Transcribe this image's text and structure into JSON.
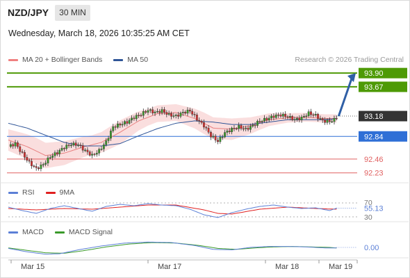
{
  "header": {
    "pair": "NZD/JPY",
    "timeframe": "30 MIN",
    "datetime": "Wednesday, March 18, 2026 10:35:25 AM CET",
    "credit": "Research © 2026 Trading Central"
  },
  "legend": {
    "main": [
      {
        "label": "MA 20 + Bollinger Bands",
        "color": "#f08080"
      },
      {
        "label": "MA 50",
        "color": "#2f5597"
      }
    ],
    "rsi": [
      {
        "label": "RSI",
        "color": "#5b7fd6"
      },
      {
        "label": "9MA",
        "color": "#e02020"
      }
    ],
    "macd": [
      {
        "label": "MACD",
        "color": "#5b7fd6"
      },
      {
        "label": "MACD Signal",
        "color": "#3a9a2a"
      }
    ]
  },
  "colors": {
    "up": "#4caf2a",
    "resistance": "#4e9a06",
    "pivot": "#2f6fd6",
    "support": "#e06060",
    "current": "#333333",
    "arrow": "#2f5fa6",
    "bull_candle": "#3a9a2a",
    "bear_candle": "#d43030"
  },
  "chart_data": {
    "type": "candlestick",
    "x_ticks": [
      "Mar 15",
      "Mar 17",
      "Mar 18",
      "Mar 19"
    ],
    "y_range": [
      92.18,
      93.96
    ],
    "levels": [
      {
        "value": 93.9,
        "label": "93.90",
        "kind": "resistance"
      },
      {
        "value": 93.67,
        "label": "93.67",
        "kind": "resistance"
      },
      {
        "value": 93.18,
        "label": "93.18",
        "kind": "current"
      },
      {
        "value": 92.84,
        "label": "92.84",
        "kind": "pivot"
      },
      {
        "value": 92.46,
        "label": "92.46",
        "kind": "support"
      },
      {
        "value": 92.23,
        "label": "92.23",
        "kind": "support"
      }
    ],
    "price_path": [
      [
        0,
        92.67
      ],
      [
        3,
        92.72
      ],
      [
        6,
        92.55
      ],
      [
        9,
        92.4
      ],
      [
        12,
        92.3
      ],
      [
        15,
        92.37
      ],
      [
        18,
        92.5
      ],
      [
        21,
        92.57
      ],
      [
        24,
        92.66
      ],
      [
        27,
        92.71
      ],
      [
        30,
        92.7
      ],
      [
        33,
        92.6
      ],
      [
        36,
        92.52
      ],
      [
        39,
        92.6
      ],
      [
        42,
        92.75
      ],
      [
        45,
        93.0
      ],
      [
        48,
        93.04
      ],
      [
        51,
        93.08
      ],
      [
        54,
        93.16
      ],
      [
        57,
        93.21
      ],
      [
        60,
        93.28
      ],
      [
        63,
        93.24
      ],
      [
        66,
        93.27
      ],
      [
        69,
        93.2
      ],
      [
        72,
        93.18
      ],
      [
        75,
        93.24
      ],
      [
        78,
        93.27
      ],
      [
        81,
        93.13
      ],
      [
        84,
        93.02
      ],
      [
        87,
        92.85
      ],
      [
        90,
        92.76
      ],
      [
        93,
        92.9
      ],
      [
        96,
        92.96
      ],
      [
        99,
        93.0
      ],
      [
        102,
        92.96
      ],
      [
        105,
        93.02
      ],
      [
        108,
        93.1
      ],
      [
        111,
        93.13
      ],
      [
        114,
        93.18
      ],
      [
        117,
        93.2
      ],
      [
        120,
        93.17
      ],
      [
        123,
        93.12
      ],
      [
        126,
        93.15
      ],
      [
        129,
        93.23
      ],
      [
        132,
        93.19
      ],
      [
        135,
        93.1
      ],
      [
        138,
        93.09
      ],
      [
        140,
        93.12
      ],
      [
        141,
        93.16
      ]
    ],
    "ma50": [
      [
        0,
        93.06
      ],
      [
        8,
        92.98
      ],
      [
        16,
        92.86
      ],
      [
        24,
        92.74
      ],
      [
        32,
        92.68
      ],
      [
        40,
        92.68
      ],
      [
        48,
        92.72
      ],
      [
        56,
        92.85
      ],
      [
        64,
        92.97
      ],
      [
        72,
        93.06
      ],
      [
        80,
        93.1
      ],
      [
        88,
        93.08
      ],
      [
        96,
        93.04
      ],
      [
        104,
        93.04
      ],
      [
        112,
        93.08
      ],
      [
        120,
        93.12
      ],
      [
        128,
        93.12
      ],
      [
        136,
        93.12
      ],
      [
        141,
        93.14
      ]
    ],
    "ma20": [
      [
        0,
        92.78
      ],
      [
        8,
        92.67
      ],
      [
        16,
        92.52
      ],
      [
        24,
        92.56
      ],
      [
        32,
        92.66
      ],
      [
        40,
        92.74
      ],
      [
        48,
        92.91
      ],
      [
        56,
        93.1
      ],
      [
        64,
        93.22
      ],
      [
        72,
        93.24
      ],
      [
        80,
        93.14
      ],
      [
        88,
        92.98
      ],
      [
        96,
        92.96
      ],
      [
        104,
        93.02
      ],
      [
        112,
        93.12
      ],
      [
        120,
        93.15
      ],
      [
        128,
        93.16
      ],
      [
        136,
        93.14
      ],
      [
        141,
        93.14
      ]
    ],
    "bb_half_width": [
      [
        0,
        0.18
      ],
      [
        12,
        0.22
      ],
      [
        24,
        0.2
      ],
      [
        36,
        0.16
      ],
      [
        48,
        0.2
      ],
      [
        60,
        0.14
      ],
      [
        72,
        0.14
      ],
      [
        84,
        0.18
      ],
      [
        96,
        0.18
      ],
      [
        108,
        0.12
      ],
      [
        120,
        0.08
      ],
      [
        132,
        0.07
      ],
      [
        141,
        0.07
      ]
    ],
    "forecast_arrow": {
      "from": 93.18,
      "to": 93.9
    },
    "rsi": {
      "scale_labels": [
        "70",
        "55.13",
        "30"
      ],
      "levels": [
        70,
        30
      ],
      "current": 55.13,
      "rsi_path": [
        [
          0,
          58
        ],
        [
          6,
          48
        ],
        [
          12,
          40
        ],
        [
          18,
          54
        ],
        [
          24,
          62
        ],
        [
          30,
          54
        ],
        [
          36,
          46
        ],
        [
          42,
          60
        ],
        [
          48,
          66
        ],
        [
          54,
          62
        ],
        [
          60,
          68
        ],
        [
          66,
          64
        ],
        [
          72,
          62
        ],
        [
          78,
          52
        ],
        [
          84,
          36
        ],
        [
          90,
          28
        ],
        [
          96,
          42
        ],
        [
          102,
          52
        ],
        [
          108,
          60
        ],
        [
          114,
          64
        ],
        [
          120,
          58
        ],
        [
          126,
          54
        ],
        [
          132,
          56
        ],
        [
          138,
          48
        ],
        [
          141,
          55
        ]
      ],
      "ma9_path": [
        [
          0,
          54
        ],
        [
          12,
          50
        ],
        [
          24,
          54
        ],
        [
          36,
          52
        ],
        [
          48,
          58
        ],
        [
          60,
          64
        ],
        [
          72,
          64
        ],
        [
          84,
          50
        ],
        [
          90,
          40
        ],
        [
          96,
          38
        ],
        [
          108,
          52
        ],
        [
          120,
          58
        ],
        [
          132,
          54
        ],
        [
          141,
          52
        ]
      ]
    },
    "macd": {
      "scale_label": "0.00",
      "zero": 0.0,
      "macd_path": [
        [
          0,
          -0.02
        ],
        [
          8,
          -0.09
        ],
        [
          16,
          -0.14
        ],
        [
          22,
          -0.13
        ],
        [
          30,
          -0.05
        ],
        [
          40,
          0.03
        ],
        [
          50,
          0.09
        ],
        [
          60,
          0.11
        ],
        [
          70,
          0.1
        ],
        [
          80,
          0.04
        ],
        [
          88,
          -0.04
        ],
        [
          96,
          -0.05
        ],
        [
          104,
          0.0
        ],
        [
          112,
          0.02
        ],
        [
          120,
          0.02
        ],
        [
          128,
          0.01
        ],
        [
          136,
          -0.01
        ],
        [
          141,
          -0.01
        ]
      ],
      "signal_path": [
        [
          0,
          -0.01
        ],
        [
          8,
          -0.06
        ],
        [
          16,
          -0.11
        ],
        [
          24,
          -0.12
        ],
        [
          32,
          -0.07
        ],
        [
          42,
          0.01
        ],
        [
          52,
          0.07
        ],
        [
          62,
          0.1
        ],
        [
          72,
          0.09
        ],
        [
          82,
          0.04
        ],
        [
          90,
          -0.02
        ],
        [
          98,
          -0.04
        ],
        [
          106,
          -0.01
        ],
        [
          114,
          0.01
        ],
        [
          122,
          0.02
        ],
        [
          130,
          0.01
        ],
        [
          138,
          0.0
        ],
        [
          141,
          -0.01
        ]
      ]
    }
  }
}
